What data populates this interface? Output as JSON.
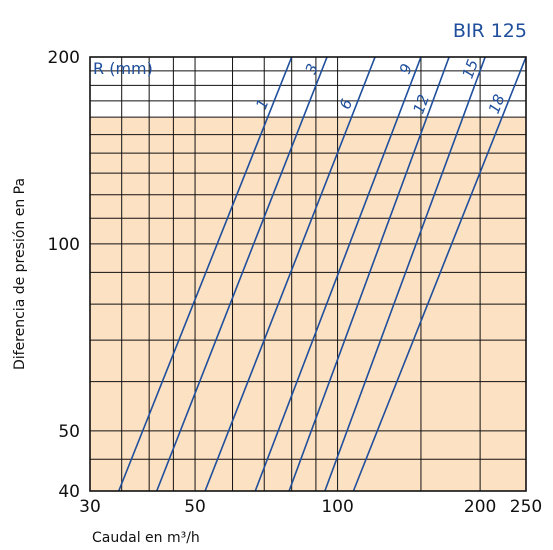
{
  "title": "BIR 125",
  "chart_data": {
    "type": "line",
    "title": "BIR 125",
    "xlabel": "Caudal en m³/h",
    "ylabel": "Diferencia de presión en Pa",
    "x_scale": "log",
    "y_scale": "log",
    "xlim": [
      30,
      250
    ],
    "ylim": [
      40,
      200
    ],
    "x_ticks": [
      30,
      50,
      100,
      200,
      250
    ],
    "x_tick_labels": [
      "30",
      "50",
      "100",
      "200",
      "250"
    ],
    "y_ticks": [
      40,
      50,
      100,
      200
    ],
    "y_tick_labels": [
      "40",
      "50",
      "100",
      "200"
    ],
    "x_grid": [
      30,
      35,
      40,
      45,
      50,
      60,
      70,
      80,
      90,
      100,
      150,
      200,
      250
    ],
    "y_grid": [
      40,
      45,
      50,
      60,
      70,
      80,
      90,
      100,
      110,
      120,
      130,
      140,
      150,
      160,
      170,
      180,
      190,
      200
    ],
    "grid": true,
    "shaded_region": {
      "y": [
        40,
        160
      ],
      "color": "#fde1c3"
    },
    "curve_label_title": "R (mm)",
    "series": [
      {
        "name": "1",
        "points": [
          [
            34.5,
            40
          ],
          [
            80,
            200
          ]
        ]
      },
      {
        "name": "3",
        "points": [
          [
            41.5,
            40
          ],
          [
            95,
            200
          ]
        ]
      },
      {
        "name": "6",
        "points": [
          [
            52.5,
            40
          ],
          [
            120,
            200
          ]
        ]
      },
      {
        "name": "9",
        "points": [
          [
            67,
            40
          ],
          [
            150,
            200
          ]
        ]
      },
      {
        "name": "12",
        "points": [
          [
            79,
            40
          ],
          [
            172,
            200
          ]
        ]
      },
      {
        "name": "15",
        "points": [
          [
            94,
            40
          ],
          [
            205,
            200
          ]
        ]
      },
      {
        "name": "18",
        "points": [
          [
            108,
            40
          ],
          [
            250,
            200
          ]
        ]
      }
    ],
    "colors": {
      "line": "#1f4f9c",
      "grid": "#111111",
      "shade": "#fde1c3"
    }
  }
}
